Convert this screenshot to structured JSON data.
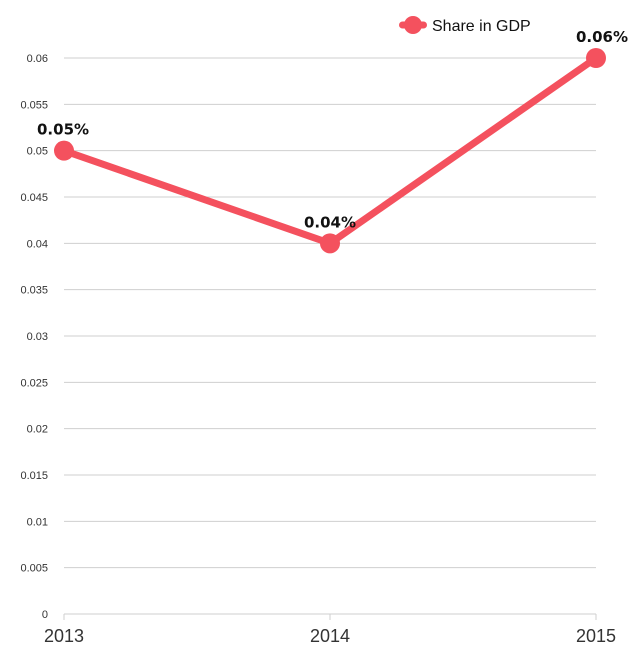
{
  "chart_data": {
    "type": "line",
    "categories": [
      "2013",
      "2014",
      "2015"
    ],
    "series": [
      {
        "name": "Share in GDP",
        "values": [
          0.05,
          0.04,
          0.06
        ],
        "labels": [
          "0.05%",
          "0.04%",
          "0.06%"
        ]
      }
    ],
    "ylim": [
      0,
      0.06
    ],
    "yticks": [
      "0",
      "0.005",
      "0.01",
      "0.015",
      "0.02",
      "0.025",
      "0.03",
      "0.035",
      "0.04",
      "0.045",
      "0.05",
      "0.055",
      "0.06"
    ],
    "grid": true,
    "legend_position": "top-right",
    "colors": {
      "series": "#f4515e",
      "grid": "#cfcfcf",
      "text": "#333333"
    }
  }
}
